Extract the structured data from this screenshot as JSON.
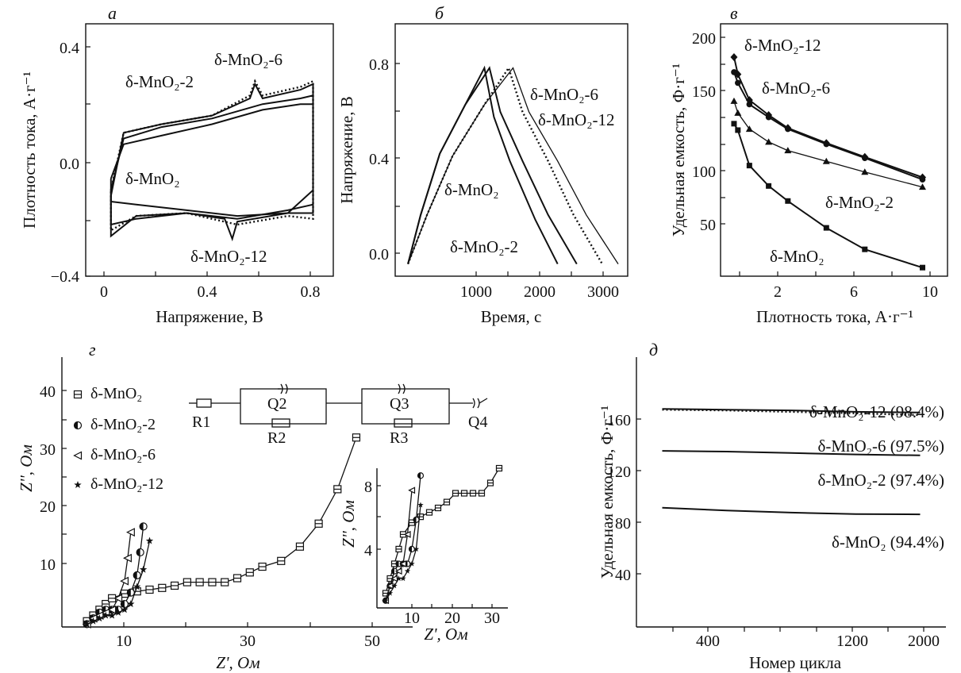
{
  "charts": [
    {
      "type": "line",
      "panel_label": "а",
      "xlabel": "Напряжение, В",
      "ylabel": "Плотность тока, А·г⁻¹",
      "xlim": [
        -0.1,
        0.88
      ],
      "ylim": [
        -0.4,
        0.48
      ],
      "xticks": [
        "0",
        "0.4",
        "0.8"
      ],
      "yticks": [
        "−0.4",
        "0.0",
        "0.4"
      ],
      "annotations": [
        "δ-MnO₂-6",
        "δ-MnO₂-2",
        "δ-MnO₂",
        "δ-MnO₂-12"
      ],
      "series": [
        {
          "name": "δ-MnO₂",
          "x": [
            0,
            0.05,
            0.2,
            0.4,
            0.6,
            0.75,
            0.8,
            0.8,
            0.7,
            0.5,
            0.3,
            0.1,
            0,
            0
          ],
          "y": [
            -0.06,
            0.06,
            0.09,
            0.13,
            0.18,
            0.2,
            0.2,
            -0.1,
            -0.18,
            -0.19,
            -0.17,
            -0.15,
            -0.14,
            -0.06
          ]
        },
        {
          "name": "δ-MnO₂-2",
          "x": [
            0,
            0.05,
            0.2,
            0.4,
            0.6,
            0.75,
            0.8,
            0.8,
            0.7,
            0.5,
            0.3,
            0.1,
            0,
            0
          ],
          "y": [
            -0.1,
            0.08,
            0.12,
            0.15,
            0.2,
            0.22,
            0.23,
            -0.15,
            -0.17,
            -0.2,
            -0.18,
            -0.2,
            -0.22,
            -0.1
          ]
        },
        {
          "name": "δ-MnO₂-6",
          "x": [
            0,
            0.05,
            0.2,
            0.4,
            0.55,
            0.57,
            0.6,
            0.75,
            0.8,
            0.8,
            0.7,
            0.5,
            0.3,
            0.1,
            0,
            0
          ],
          "y": [
            -0.1,
            0.1,
            0.13,
            0.16,
            0.23,
            0.28,
            0.23,
            0.26,
            0.28,
            -0.2,
            -0.19,
            -0.22,
            -0.18,
            -0.19,
            -0.24,
            -0.1
          ]
        },
        {
          "name": "δ-MnO₂-12",
          "x": [
            0,
            0.05,
            0.2,
            0.4,
            0.55,
            0.57,
            0.6,
            0.75,
            0.8,
            0.8,
            0.7,
            0.5,
            0.48,
            0.45,
            0.3,
            0.1,
            0,
            0
          ],
          "y": [
            -0.12,
            0.1,
            0.13,
            0.16,
            0.22,
            0.27,
            0.22,
            0.25,
            0.27,
            -0.18,
            -0.18,
            -0.21,
            -0.27,
            -0.2,
            -0.18,
            -0.19,
            -0.26,
            -0.12
          ]
        }
      ]
    },
    {
      "type": "line",
      "panel_label": "б",
      "xlabel": "Время, с",
      "ylabel": "Напряжение, В",
      "xlim": [
        -200,
        3450
      ],
      "ylim": [
        -0.05,
        0.98
      ],
      "xticks": [
        "1000",
        "2000",
        "3000"
      ],
      "yticks": [
        "0.0",
        "0.4",
        "0.8"
      ],
      "annotations": [
        "δ-MnO₂-6",
        "δ-MnO₂-12",
        "δ-MnO₂",
        "δ-MnO₂-2"
      ],
      "series": [
        {
          "name": "δ-MnO₂",
          "x": [
            0,
            200,
            500,
            900,
            1200,
            1350,
            1600,
            2000,
            2350
          ],
          "y": [
            0,
            0.2,
            0.45,
            0.65,
            0.8,
            0.6,
            0.42,
            0.18,
            0
          ]
        },
        {
          "name": "δ-MnO₂-2",
          "x": [
            0,
            200,
            500,
            900,
            1280,
            1450,
            1800,
            2200,
            2650
          ],
          "y": [
            0,
            0.2,
            0.45,
            0.65,
            0.8,
            0.62,
            0.42,
            0.2,
            0
          ]
        },
        {
          "name": "δ-MnO₂-6",
          "x": [
            0,
            300,
            700,
            1200,
            1580,
            1800,
            2200,
            2600,
            3050
          ],
          "y": [
            0,
            0.2,
            0.44,
            0.65,
            0.8,
            0.62,
            0.42,
            0.2,
            0
          ]
        },
        {
          "name": "δ-MnO₂-12",
          "x": [
            0,
            300,
            700,
            1200,
            1650,
            1900,
            2350,
            2800,
            3300
          ],
          "y": [
            0,
            0.2,
            0.44,
            0.65,
            0.8,
            0.62,
            0.42,
            0.2,
            0
          ]
        }
      ]
    },
    {
      "type": "line",
      "panel_label": "в",
      "xlabel": "Плотность тока, А·г⁻¹",
      "ylabel": "Удельная емкость, Ф·г⁻¹",
      "xlim": [
        -0.5,
        11.3
      ],
      "ylim": [
        0,
        235
      ],
      "xticks": [
        "2",
        "6",
        "10"
      ],
      "yticks": [
        "50",
        "100",
        "150",
        "200"
      ],
      "annotations": [
        "δ-MnO₂-12",
        "δ-MnO₂-6",
        "δ-MnO₂-2",
        "δ-MnO₂"
      ],
      "series": [
        {
          "name": "δ-MnO₂",
          "x": [
            0.2,
            0.4,
            1,
            2,
            3,
            5,
            7,
            10
          ],
          "y": [
            142,
            136,
            103,
            84,
            70,
            45,
            25,
            8
          ]
        },
        {
          "name": "δ-MnO₂-2",
          "x": [
            0.2,
            0.4,
            1,
            2,
            3,
            5,
            7,
            10
          ],
          "y": [
            163,
            152,
            137,
            125,
            117,
            107,
            97,
            83
          ]
        },
        {
          "name": "δ-MnO₂-6",
          "x": [
            0.2,
            0.4,
            1,
            2,
            3,
            5,
            7,
            10
          ],
          "y": [
            190,
            180,
            160,
            148,
            137,
            123,
            110,
            90
          ]
        },
        {
          "name": "δ-MnO₂-12",
          "x": [
            0.2,
            0.4,
            1,
            2,
            3,
            5,
            7,
            10
          ],
          "y": [
            204,
            188,
            164,
            150,
            138,
            124,
            111,
            92
          ]
        }
      ]
    },
    {
      "type": "scatter",
      "panel_label": "г",
      "xlabel": "Z', Ом",
      "ylabel": "Z'', Ом",
      "xlim": [
        0,
        56
      ],
      "ylim": [
        0,
        47
      ],
      "xticks": [
        "10",
        "30",
        "50"
      ],
      "yticks": [
        "10",
        "20",
        "30",
        "40"
      ],
      "legend": [
        "δ-MnO₂",
        "δ-MnO₂-2",
        "δ-MnO₂-6",
        "δ-MnO₂-12"
      ],
      "legend_position": "top-left",
      "circuit_labels": [
        "R1",
        "Q2",
        "R2",
        "Q3",
        "R3",
        "Q4"
      ],
      "series": [
        {
          "name": "δ-MnO₂",
          "x": [
            4,
            5,
            6,
            7,
            8,
            10,
            12,
            14,
            16,
            18,
            20,
            22,
            24,
            26,
            28,
            30,
            32,
            35,
            38,
            41,
            44,
            47
          ],
          "y": [
            1,
            2,
            3,
            4,
            5,
            5.8,
            6.2,
            6.5,
            6.8,
            7.2,
            7.8,
            7.8,
            7.8,
            7.8,
            8.5,
            9.5,
            10.5,
            11.5,
            14,
            18,
            24,
            33
          ]
        },
        {
          "name": "δ-MnO₂-2",
          "x": [
            4,
            5,
            6,
            7,
            8,
            9,
            10,
            11,
            12,
            12.5,
            13
          ],
          "y": [
            0.5,
            1.5,
            2.5,
            3,
            3,
            3,
            4,
            6,
            9,
            13,
            17.5
          ]
        },
        {
          "name": "δ-MnO₂-6",
          "x": [
            4,
            5,
            6,
            7,
            8,
            9,
            10,
            10.5,
            11
          ],
          "y": [
            0.5,
            1.5,
            2,
            2.5,
            3,
            5,
            8,
            12,
            16.5
          ]
        },
        {
          "name": "δ-MnO₂-12",
          "x": [
            4,
            5,
            6,
            7,
            8,
            9,
            10,
            11,
            12,
            13,
            14
          ],
          "y": [
            0.5,
            1,
            1.5,
            2,
            2,
            2.5,
            3,
            4,
            7,
            10,
            15
          ]
        }
      ],
      "inset": {
        "xlabel": "Z', Ом",
        "ylabel": "Z'', Ом",
        "xlim": [
          2,
          32
        ],
        "ylim": [
          0,
          9.5
        ],
        "xticks": [
          "10",
          "20",
          "30"
        ],
        "yticks": [
          "4",
          "8"
        ]
      }
    },
    {
      "type": "line",
      "panel_label": "д",
      "xlabel": "Номер цикла",
      "ylabel": "Удельная емкость, Ф·г⁻¹",
      "xlim": [
        -200,
        2200
      ],
      "ylim": [
        0,
        190
      ],
      "xticks": [
        "400",
        "1200",
        "2000"
      ],
      "yticks": [
        "40",
        "80",
        "120",
        "160"
      ],
      "annotations": [
        "δ-MnO₂-12 (98.4%)",
        "δ-MnO₂-6 (97.5%)",
        "δ-MnO₂-2 (97.4%)",
        "δ-MnO₂ (94.4%)"
      ],
      "series": [
        {
          "name": "δ-MnO₂",
          "x": [
            0,
            500,
            1000,
            1500,
            2000
          ],
          "y": [
            84,
            82,
            80.5,
            79.5,
            79.3
          ]
        },
        {
          "name": "δ-MnO₂-2",
          "x": [
            0,
            500,
            1000,
            1500,
            2000
          ],
          "y": [
            124,
            123.5,
            122.5,
            121.5,
            120.8
          ]
        },
        {
          "name": "δ-MnO₂-6",
          "x": [
            0,
            500,
            1000,
            1500,
            2000
          ],
          "y": [
            153,
            152.5,
            151.5,
            150.5,
            149.2
          ]
        },
        {
          "name": "δ-MnO₂-12",
          "x": [
            0,
            500,
            1000,
            1500,
            2000
          ],
          "y": [
            153.5,
            153,
            152.5,
            151.5,
            151
          ]
        }
      ]
    }
  ]
}
